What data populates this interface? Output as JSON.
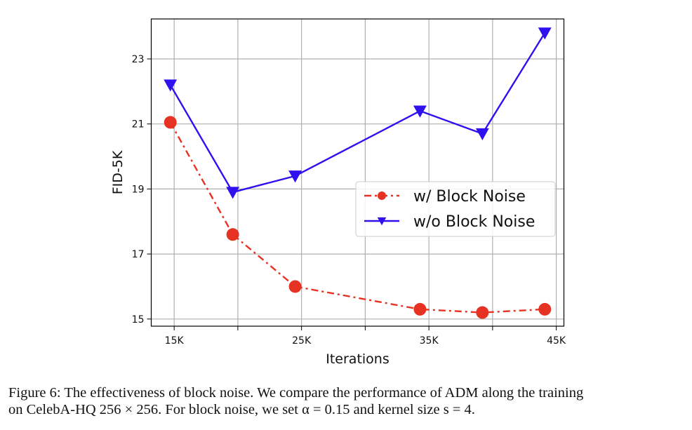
{
  "chart_data": {
    "type": "line",
    "title": "",
    "xlabel": "Iterations",
    "ylabel": "FID-5K",
    "xlim": [
      13.2,
      45.6
    ],
    "ylim": [
      14.78,
      24.23
    ],
    "x_unit": "K",
    "xticks": [
      {
        "value": 15,
        "label": "15K"
      },
      {
        "value": 20,
        "label": ""
      },
      {
        "value": 25,
        "label": "25K"
      },
      {
        "value": 30,
        "label": ""
      },
      {
        "value": 35,
        "label": "35K"
      },
      {
        "value": 40,
        "label": ""
      },
      {
        "value": 45,
        "label": "45K"
      }
    ],
    "yticks": [
      {
        "value": 15,
        "label": "15"
      },
      {
        "value": 17,
        "label": "17"
      },
      {
        "value": 19,
        "label": "19"
      },
      {
        "value": 21,
        "label": "21"
      },
      {
        "value": 23,
        "label": "23"
      }
    ],
    "grid": true,
    "legend_position": "center-right",
    "series": [
      {
        "name": "w/ Block Noise",
        "color": "#e63222",
        "line_style": "dash-dot",
        "marker": "circle",
        "x": [
          14.7,
          19.6,
          24.5,
          34.3,
          39.2,
          44.1
        ],
        "values": [
          21.05,
          17.6,
          16.0,
          15.3,
          15.2,
          15.3
        ]
      },
      {
        "name": "w/o Block Noise",
        "color": "#2f10ee",
        "line_style": "solid",
        "marker": "triangle-down",
        "x": [
          14.7,
          19.6,
          24.5,
          34.3,
          39.2,
          44.1
        ],
        "values": [
          22.2,
          18.9,
          19.4,
          21.4,
          20.7,
          23.8
        ]
      }
    ]
  },
  "caption": {
    "line1": "Figure 6: The effectiveness of block noise. We compare the performance of ADM along the training",
    "line2": "on CelebA-HQ 256 × 256. For block noise, we set α = 0.15 and kernel size s = 4."
  }
}
